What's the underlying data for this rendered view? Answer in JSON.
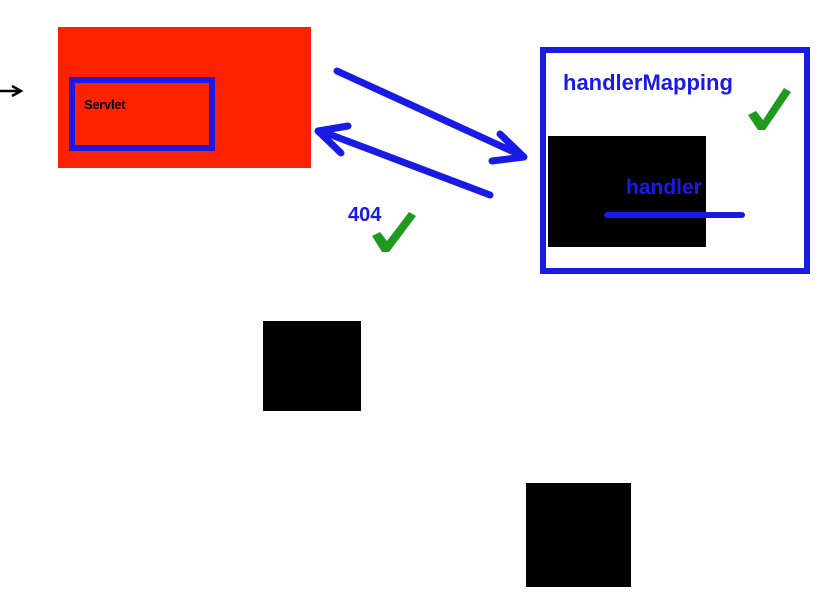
{
  "colors": {
    "servlet_fill": "#ff2200",
    "blue": "#1a1ae6",
    "check_green": "#1f9a1f",
    "black": "#000000"
  },
  "servlet": {
    "label": "Servlet"
  },
  "handler_mapping": {
    "label": "handlerMapping"
  },
  "handler": {
    "label": "handler"
  },
  "not_found": {
    "label": "404"
  },
  "icons": [
    "incoming-arrow-icon",
    "request-arrow-icon",
    "response-arrow-icon",
    "check-icon"
  ]
}
